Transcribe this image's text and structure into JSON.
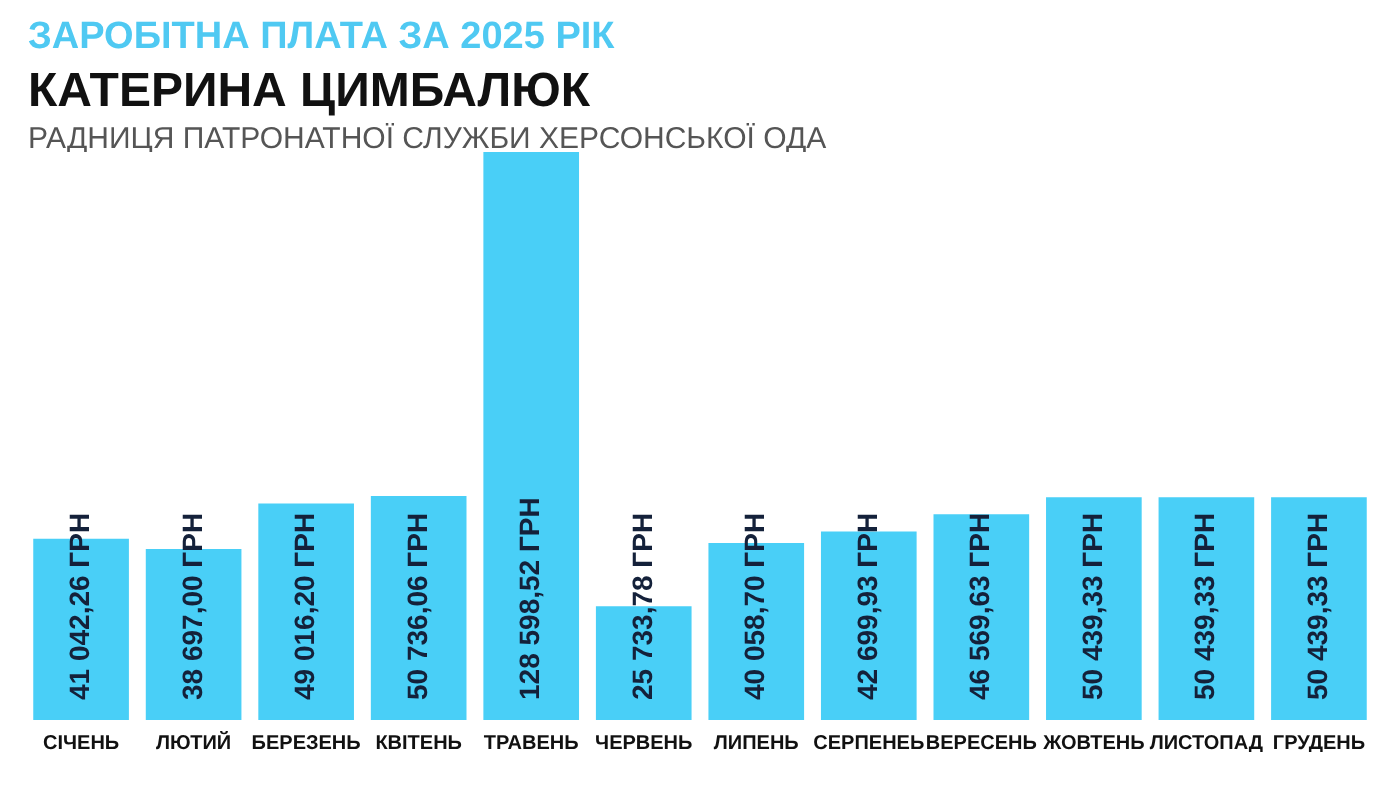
{
  "chart_data": {
    "type": "bar",
    "title": "ЗАРОБІТНА ПЛАТА ЗА 2025 РІК",
    "subtitle": "КАТЕРИНА ЦИМБАЛЮК",
    "annotations": [
      "РАДНИЦЯ ПАТРОНАТНОЇ СЛУЖБИ ХЕРСОНСЬКОЇ ОДА"
    ],
    "categories": [
      "СІЧЕНЬ",
      "ЛЮТИЙ",
      "БЕРЕЗЕНЬ",
      "КВІТЕНЬ",
      "ТРАВЕНЬ",
      "ЧЕРВЕНЬ",
      "ЛИПЕНЬ",
      "СЕРПЕНЕЬ",
      "ВЕРЕСЕНЬ",
      "ЖОВТЕНЬ",
      "ЛИСТОПАД",
      "ГРУДЕНЬ"
    ],
    "values": [
      41042.26,
      38697.0,
      49016.2,
      50736.06,
      128598.52,
      25733.78,
      40058.7,
      42699.93,
      46569.63,
      50439.33,
      50439.33,
      50439.33
    ],
    "value_labels": [
      "41 042,26 ГРН",
      "38 697,00 ГРН",
      "49 016,20 ГРН",
      "50 736,06 ГРН",
      "128 598,52 ГРН",
      "25 733,78 ГРН",
      "40 058,70 ГРН",
      "42 699,93 ГРН",
      "46 569,63 ГРН",
      "50 439,33 ГРН",
      "50 439,33 ГРН",
      "50 439,33 ГРН"
    ],
    "color": "#49cff7",
    "grid": false
  }
}
